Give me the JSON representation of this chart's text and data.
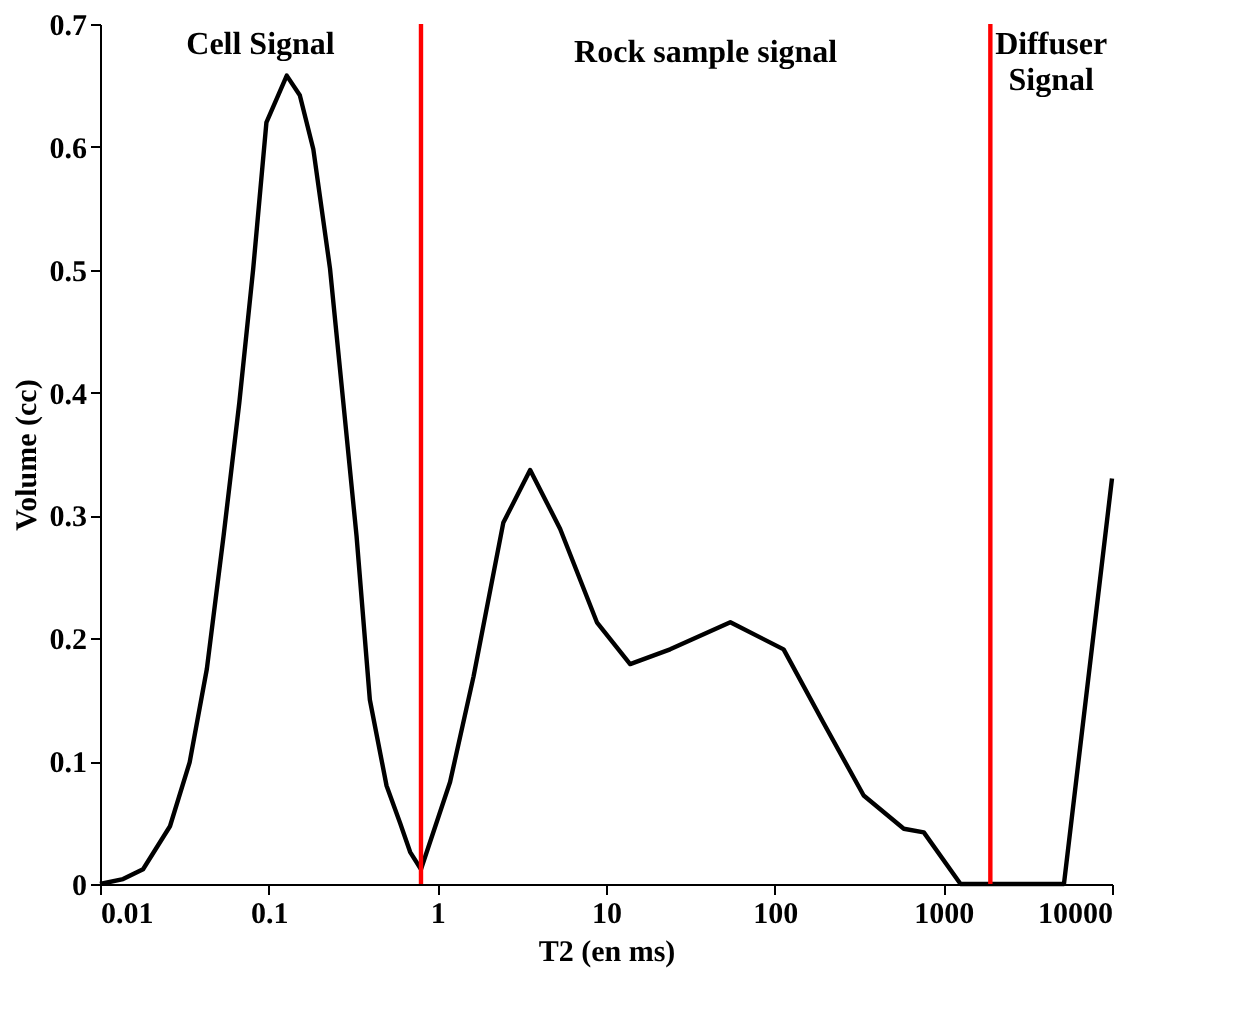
{
  "chart_data": {
    "type": "line",
    "xlabel": "T2 (en ms)",
    "ylabel": "Volume (cc)",
    "x": [
      0.01,
      0.0137,
      0.018,
      0.026,
      0.034,
      0.043,
      0.054,
      0.067,
      0.081,
      0.097,
      0.128,
      0.153,
      0.184,
      0.231,
      0.277,
      0.332,
      0.398,
      0.5,
      0.6,
      0.69,
      0.8,
      1.19,
      1.64,
      2.46,
      3.55,
      5.35,
      8.83,
      13.9,
      24.0,
      54.6,
      113,
      195,
      337,
      583,
      766,
      1265,
      5190,
      10000
    ],
    "series": [
      {
        "color": "#000000",
        "values": [
          0,
          0.004,
          0.012,
          0.047,
          0.099,
          0.175,
          0.283,
          0.392,
          0.501,
          0.62,
          0.658,
          0.642,
          0.598,
          0.501,
          0.392,
          0.283,
          0.15,
          0.08,
          0.05,
          0.026,
          0.012,
          0.083,
          0.169,
          0.294,
          0.337,
          0.289,
          0.213,
          0.179,
          0.191,
          0.213,
          0.191,
          0.131,
          0.072,
          0.045,
          0.042,
          0,
          0,
          0.33
        ]
      }
    ],
    "log": "x",
    "xlim": [
      0.01,
      10000
    ],
    "xticks": [
      0.01,
      0.1,
      1,
      10,
      100,
      1000,
      10000
    ],
    "ylim": [
      0,
      0.7
    ],
    "yticks": [
      0,
      0.1,
      0.2,
      0.3,
      0.4,
      0.5,
      0.6,
      0.7
    ],
    "grid": false,
    "marker": "none",
    "line_style": "solid",
    "ref_lines": [
      {
        "axis": "x",
        "value": 0.8,
        "color": "#ff0000"
      },
      {
        "axis": "x",
        "value": 1900,
        "color": "#ff0000"
      }
    ],
    "annotations": [
      "Cell Signal",
      "Rock sample signal",
      "Diffuser\nSignal"
    ]
  }
}
